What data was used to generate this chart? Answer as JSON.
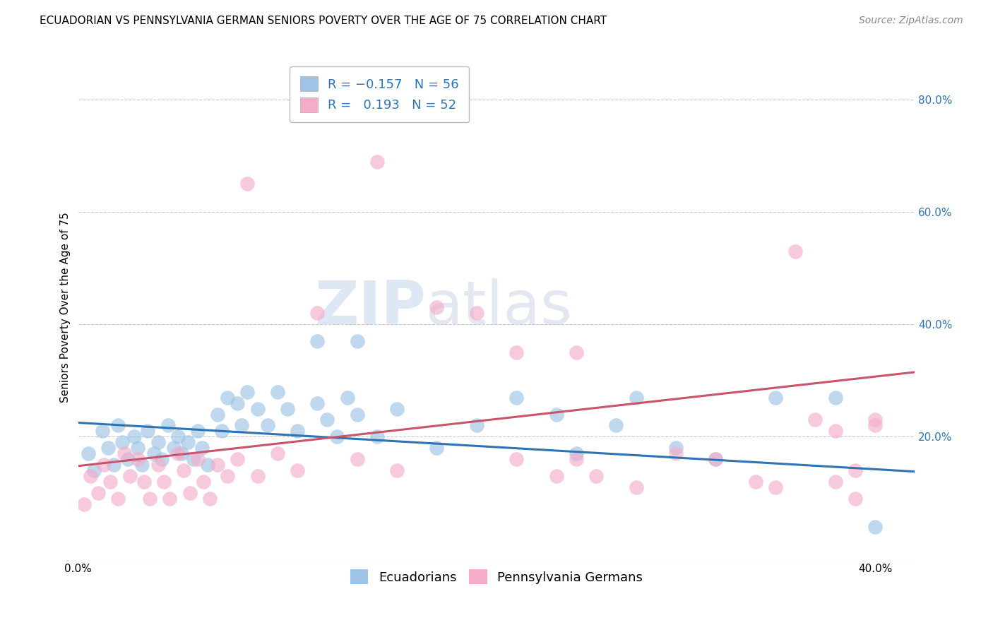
{
  "title": "ECUADORIAN VS PENNSYLVANIA GERMAN SENIORS POVERTY OVER THE AGE OF 75 CORRELATION CHART",
  "source": "Source: ZipAtlas.com",
  "ylabel": "Seniors Poverty Over the Age of 75",
  "xlim": [
    0.0,
    0.42
  ],
  "ylim": [
    -0.02,
    0.88
  ],
  "blue_R": -0.157,
  "blue_N": 56,
  "pink_R": 0.193,
  "pink_N": 52,
  "blue_color": "#9DC3E6",
  "pink_color": "#F4ACCA",
  "blue_line_color": "#2E74B5",
  "pink_line_color": "#C9546C",
  "background_color": "#FFFFFF",
  "grid_color": "#C8C8C8",
  "blue_line_x0": 0.0,
  "blue_line_y0": 0.225,
  "blue_line_x1": 0.42,
  "blue_line_y1": 0.138,
  "pink_line_x0": 0.0,
  "pink_line_y0": 0.148,
  "pink_line_x1": 0.42,
  "pink_line_y1": 0.315,
  "blue_scatter_x": [
    0.005,
    0.008,
    0.012,
    0.015,
    0.018,
    0.02,
    0.022,
    0.025,
    0.028,
    0.03,
    0.032,
    0.035,
    0.038,
    0.04,
    0.042,
    0.045,
    0.048,
    0.05,
    0.052,
    0.055,
    0.058,
    0.06,
    0.062,
    0.065,
    0.07,
    0.072,
    0.075,
    0.08,
    0.082,
    0.085,
    0.09,
    0.095,
    0.1,
    0.105,
    0.11,
    0.12,
    0.125,
    0.13,
    0.135,
    0.14,
    0.15,
    0.16,
    0.18,
    0.2,
    0.22,
    0.24,
    0.25,
    0.27,
    0.28,
    0.3,
    0.32,
    0.35,
    0.38,
    0.4,
    0.12,
    0.14
  ],
  "blue_scatter_y": [
    0.17,
    0.14,
    0.21,
    0.18,
    0.15,
    0.22,
    0.19,
    0.16,
    0.2,
    0.18,
    0.15,
    0.21,
    0.17,
    0.19,
    0.16,
    0.22,
    0.18,
    0.2,
    0.17,
    0.19,
    0.16,
    0.21,
    0.18,
    0.15,
    0.24,
    0.21,
    0.27,
    0.26,
    0.22,
    0.28,
    0.25,
    0.22,
    0.28,
    0.25,
    0.21,
    0.26,
    0.23,
    0.2,
    0.27,
    0.24,
    0.2,
    0.25,
    0.18,
    0.22,
    0.27,
    0.24,
    0.17,
    0.22,
    0.27,
    0.18,
    0.16,
    0.27,
    0.27,
    0.04,
    0.37,
    0.37
  ],
  "pink_scatter_x": [
    0.003,
    0.006,
    0.01,
    0.013,
    0.016,
    0.02,
    0.023,
    0.026,
    0.03,
    0.033,
    0.036,
    0.04,
    0.043,
    0.046,
    0.05,
    0.053,
    0.056,
    0.06,
    0.063,
    0.066,
    0.07,
    0.075,
    0.08,
    0.085,
    0.09,
    0.1,
    0.11,
    0.12,
    0.14,
    0.15,
    0.16,
    0.18,
    0.2,
    0.22,
    0.24,
    0.25,
    0.26,
    0.28,
    0.3,
    0.32,
    0.34,
    0.35,
    0.36,
    0.37,
    0.38,
    0.38,
    0.39,
    0.39,
    0.4,
    0.4,
    0.22,
    0.25
  ],
  "pink_scatter_y": [
    0.08,
    0.13,
    0.1,
    0.15,
    0.12,
    0.09,
    0.17,
    0.13,
    0.16,
    0.12,
    0.09,
    0.15,
    0.12,
    0.09,
    0.17,
    0.14,
    0.1,
    0.16,
    0.12,
    0.09,
    0.15,
    0.13,
    0.16,
    0.65,
    0.13,
    0.17,
    0.14,
    0.42,
    0.16,
    0.69,
    0.14,
    0.43,
    0.42,
    0.16,
    0.13,
    0.16,
    0.13,
    0.11,
    0.17,
    0.16,
    0.12,
    0.11,
    0.53,
    0.23,
    0.12,
    0.21,
    0.14,
    0.09,
    0.23,
    0.22,
    0.35,
    0.35
  ],
  "watermark_part1": "ZIP",
  "watermark_part2": "atlas",
  "title_fontsize": 11,
  "axis_label_fontsize": 11,
  "tick_fontsize": 11,
  "legend_fontsize": 13,
  "source_fontsize": 10
}
